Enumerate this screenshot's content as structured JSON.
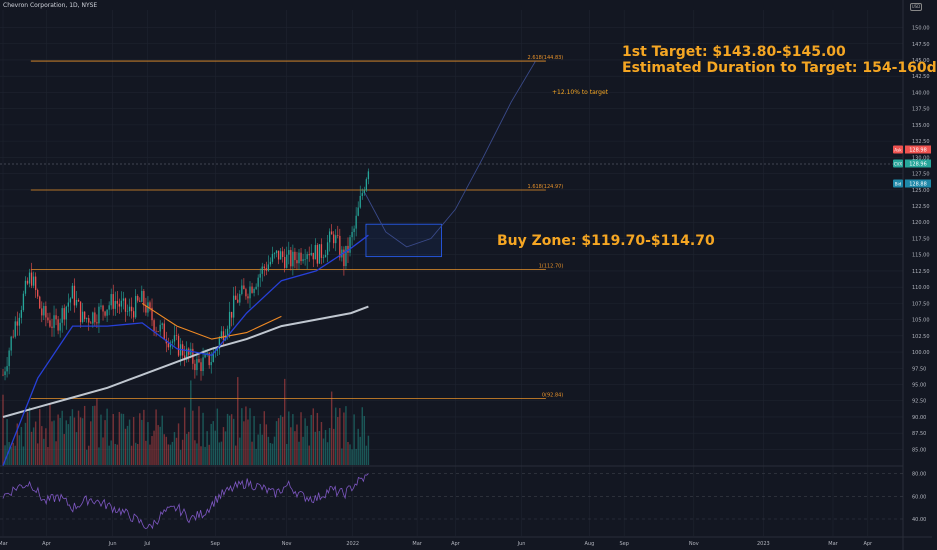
{
  "header": {
    "symbol_title": "Chevron Corporation, 1D, NYSE",
    "badge": "USD"
  },
  "annotations": {
    "target_line1": "1st Target: $143.80-$145.00",
    "target_line2": "Estimated Duration to Target: 154-160d",
    "target_pct": "+12.10% to target",
    "buy_zone": "Buy Zone: $119.70-$114.70"
  },
  "colors": {
    "background": "#131722",
    "grid": "#1f2430",
    "fib": "#e8922a",
    "candle_up": "#26a69a",
    "candle_down": "#ef5350",
    "ma_fast": "#2740d8",
    "ma_slow": "#c0c7d0",
    "ma_orange": "#f08a24",
    "rsi": "#7e57c2",
    "zone": "#2962ff",
    "text": "#b2b5be",
    "accent": "#f5a623"
  },
  "chart_data": {
    "type": "candlestick",
    "price_axis": {
      "ticks": [
        85.0,
        87.5,
        90.0,
        92.5,
        95.0,
        97.5,
        100.0,
        102.5,
        105.0,
        107.5,
        110.0,
        112.5,
        115.0,
        117.5,
        120.0,
        122.5,
        125.0,
        127.5,
        130.0,
        132.5,
        135.0,
        137.5,
        140.0,
        142.5,
        145.0,
        147.5,
        150.0
      ],
      "ylim": [
        82.6,
        152.7
      ]
    },
    "time_axis": {
      "labels": [
        "Mar",
        "Apr",
        "Jun",
        "Jul",
        "Sep",
        "Nov",
        "2022",
        "Mar",
        "Apr",
        "Jun",
        "Aug",
        "Sep",
        "Nov",
        "2023",
        "Mar",
        "Apr"
      ],
      "positions": [
        0,
        1.25,
        3.15,
        4.15,
        6.1,
        8.15,
        10.05,
        11.9,
        13,
        14.9,
        16.85,
        17.85,
        19.85,
        21.85,
        23.85,
        24.85
      ]
    },
    "fib_levels": [
      {
        "label": "2.618(144.83)",
        "value": 144.83
      },
      {
        "label": "1.618(124.97)",
        "value": 124.97
      },
      {
        "label": "1(112.70)",
        "value": 112.7
      },
      {
        "label": "0(92.84)",
        "value": 92.84
      }
    ],
    "price_labels": [
      {
        "tag": "Ask",
        "value": "128.98"
      },
      {
        "tag": "CVX",
        "value": "128.96"
      },
      {
        "tag": "Bid",
        "value": "128.88"
      }
    ],
    "buy_zone": {
      "high": 119.7,
      "low": 114.7,
      "start_month": 10.2,
      "end_month": 12.6
    },
    "projection": [
      [
        10.4,
        124.5
      ],
      [
        11,
        118.5
      ],
      [
        11.6,
        116.2
      ],
      [
        12.3,
        117.5
      ],
      [
        13,
        122
      ],
      [
        13.8,
        130
      ],
      [
        14.6,
        138.5
      ],
      [
        15.3,
        144.8
      ]
    ],
    "close_monthly": [
      [
        0,
        96.5
      ],
      [
        0.35,
        104.5
      ],
      [
        0.8,
        112
      ],
      [
        1.1,
        106
      ],
      [
        1.5,
        104
      ],
      [
        2,
        109
      ],
      [
        2.3,
        105
      ],
      [
        2.7,
        106
      ],
      [
        3.2,
        108
      ],
      [
        3.6,
        106
      ],
      [
        4,
        108
      ],
      [
        4.4,
        104
      ],
      [
        4.8,
        102
      ],
      [
        5.2,
        100
      ],
      [
        5.6,
        98
      ],
      [
        6,
        99
      ],
      [
        6.3,
        103
      ],
      [
        6.7,
        108
      ],
      [
        7.1,
        110
      ],
      [
        7.5,
        113
      ],
      [
        7.9,
        115
      ],
      [
        8.3,
        114
      ],
      [
        8.7,
        116
      ],
      [
        9.1,
        115
      ],
      [
        9.5,
        118
      ],
      [
        9.8,
        114
      ],
      [
        10.1,
        119
      ],
      [
        10.3,
        124
      ],
      [
        10.5,
        128.9
      ]
    ],
    "ma_fast": [
      [
        0,
        82.5
      ],
      [
        1,
        96
      ],
      [
        2,
        104
      ],
      [
        3,
        104
      ],
      [
        4,
        104.5
      ],
      [
        5,
        100.5
      ],
      [
        6,
        99.5
      ],
      [
        7,
        106
      ],
      [
        8,
        111
      ],
      [
        9,
        112.5
      ],
      [
        10,
        116
      ],
      [
        10.5,
        118
      ]
    ],
    "ma_orange": [
      [
        4,
        107.5
      ],
      [
        5,
        104
      ],
      [
        6,
        102
      ],
      [
        7,
        103
      ],
      [
        8,
        105.5
      ]
    ],
    "ma_slow": [
      [
        0,
        90
      ],
      [
        1,
        91.5
      ],
      [
        2,
        93
      ],
      [
        3,
        94.5
      ],
      [
        4,
        96.5
      ],
      [
        5,
        98.5
      ],
      [
        6,
        100.5
      ],
      [
        7,
        102
      ],
      [
        8,
        104
      ],
      [
        9,
        105
      ],
      [
        10,
        106
      ],
      [
        10.5,
        107
      ]
    ],
    "rsi": {
      "axis_ticks": [
        80.0,
        60.0,
        40.0
      ],
      "ylim": [
        25,
        85
      ],
      "values": [
        [
          0,
          60
        ],
        [
          0.4,
          68
        ],
        [
          0.8,
          72
        ],
        [
          1.2,
          55
        ],
        [
          1.6,
          60
        ],
        [
          2,
          50
        ],
        [
          2.5,
          58
        ],
        [
          3,
          52
        ],
        [
          3.4,
          47
        ],
        [
          3.8,
          40
        ],
        [
          4.2,
          32
        ],
        [
          4.6,
          45
        ],
        [
          5,
          50
        ],
        [
          5.4,
          40
        ],
        [
          5.8,
          46
        ],
        [
          6.2,
          60
        ],
        [
          6.6,
          67
        ],
        [
          7,
          72
        ],
        [
          7.4,
          68
        ],
        [
          7.8,
          62
        ],
        [
          8.2,
          70
        ],
        [
          8.6,
          60
        ],
        [
          9,
          58
        ],
        [
          9.4,
          66
        ],
        [
          9.8,
          62
        ],
        [
          10.2,
          73
        ],
        [
          10.5,
          78
        ]
      ]
    }
  }
}
